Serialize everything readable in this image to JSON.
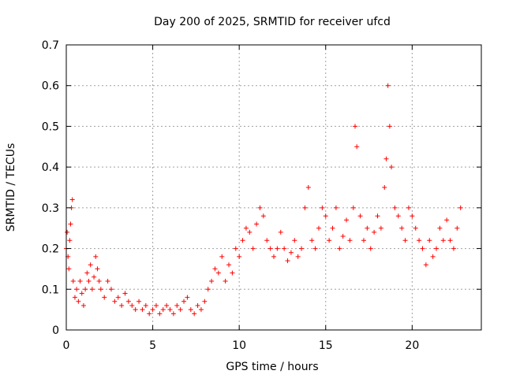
{
  "chart_data": {
    "type": "scatter",
    "title": "Day 200 of 2025, SRMTID for receiver ufcd",
    "xlabel": "GPS time / hours",
    "ylabel": "SRMTID / TECUs",
    "xlim": [
      0,
      24
    ],
    "ylim": [
      0,
      0.7
    ],
    "xticks": [
      0,
      5,
      10,
      15,
      20
    ],
    "yticks": [
      0,
      0.1,
      0.2,
      0.3,
      0.4,
      0.5,
      0.6,
      0.7
    ],
    "xtick_labels": [
      "0",
      "5",
      "10",
      "15",
      "20"
    ],
    "ytick_labels": [
      "0",
      "0.1",
      "0.2",
      "0.3",
      "0.4",
      "0.5",
      "0.6",
      "0.7"
    ],
    "grid": true,
    "marker": "+",
    "color": "#ff0000",
    "series": [
      {
        "name": "SRMTID",
        "x": [
          0.0,
          0.05,
          0.1,
          0.15,
          0.2,
          0.25,
          0.3,
          0.35,
          0.4,
          0.5,
          0.6,
          0.7,
          0.8,
          0.9,
          1.0,
          1.1,
          1.2,
          1.3,
          1.4,
          1.5,
          1.6,
          1.7,
          1.8,
          1.9,
          2.0,
          2.2,
          2.4,
          2.6,
          2.8,
          3.0,
          3.2,
          3.4,
          3.6,
          3.8,
          4.0,
          4.2,
          4.4,
          4.6,
          4.8,
          5.0,
          5.2,
          5.4,
          5.6,
          5.8,
          6.0,
          6.2,
          6.4,
          6.6,
          6.8,
          7.0,
          7.2,
          7.4,
          7.6,
          7.8,
          8.0,
          8.2,
          8.4,
          8.6,
          8.8,
          9.0,
          9.2,
          9.4,
          9.6,
          9.8,
          10.0,
          10.2,
          10.4,
          10.6,
          10.8,
          11.0,
          11.2,
          11.4,
          11.6,
          11.8,
          12.0,
          12.2,
          12.4,
          12.6,
          12.8,
          13.0,
          13.2,
          13.4,
          13.6,
          13.8,
          14.0,
          14.2,
          14.4,
          14.6,
          14.8,
          15.0,
          15.2,
          15.4,
          15.6,
          15.8,
          16.0,
          16.2,
          16.4,
          16.6,
          16.7,
          16.8,
          17.0,
          17.2,
          17.4,
          17.6,
          17.8,
          18.0,
          18.2,
          18.4,
          18.5,
          18.6,
          18.7,
          18.8,
          19.0,
          19.2,
          19.4,
          19.6,
          19.8,
          20.0,
          20.2,
          20.4,
          20.6,
          20.8,
          21.0,
          21.2,
          21.4,
          21.6,
          21.8,
          22.0,
          22.2,
          22.4,
          22.6,
          22.8
        ],
        "y": [
          0.2,
          0.24,
          0.18,
          0.15,
          0.22,
          0.26,
          0.3,
          0.32,
          0.12,
          0.08,
          0.1,
          0.07,
          0.12,
          0.09,
          0.06,
          0.1,
          0.14,
          0.12,
          0.16,
          0.1,
          0.13,
          0.18,
          0.15,
          0.12,
          0.1,
          0.08,
          0.12,
          0.1,
          0.07,
          0.08,
          0.06,
          0.09,
          0.07,
          0.06,
          0.05,
          0.07,
          0.05,
          0.06,
          0.04,
          0.05,
          0.06,
          0.04,
          0.05,
          0.06,
          0.05,
          0.04,
          0.06,
          0.05,
          0.07,
          0.08,
          0.05,
          0.04,
          0.06,
          0.05,
          0.07,
          0.1,
          0.12,
          0.15,
          0.14,
          0.18,
          0.12,
          0.16,
          0.14,
          0.2,
          0.18,
          0.22,
          0.25,
          0.24,
          0.2,
          0.26,
          0.3,
          0.28,
          0.22,
          0.2,
          0.18,
          0.2,
          0.24,
          0.2,
          0.17,
          0.19,
          0.22,
          0.18,
          0.2,
          0.3,
          0.35,
          0.22,
          0.2,
          0.25,
          0.3,
          0.28,
          0.22,
          0.25,
          0.3,
          0.2,
          0.23,
          0.27,
          0.22,
          0.3,
          0.5,
          0.45,
          0.28,
          0.22,
          0.25,
          0.2,
          0.24,
          0.28,
          0.25,
          0.35,
          0.42,
          0.6,
          0.5,
          0.4,
          0.3,
          0.28,
          0.25,
          0.22,
          0.3,
          0.28,
          0.25,
          0.22,
          0.2,
          0.16,
          0.22,
          0.18,
          0.2,
          0.25,
          0.22,
          0.27,
          0.22,
          0.2,
          0.25,
          0.3
        ]
      }
    ]
  }
}
